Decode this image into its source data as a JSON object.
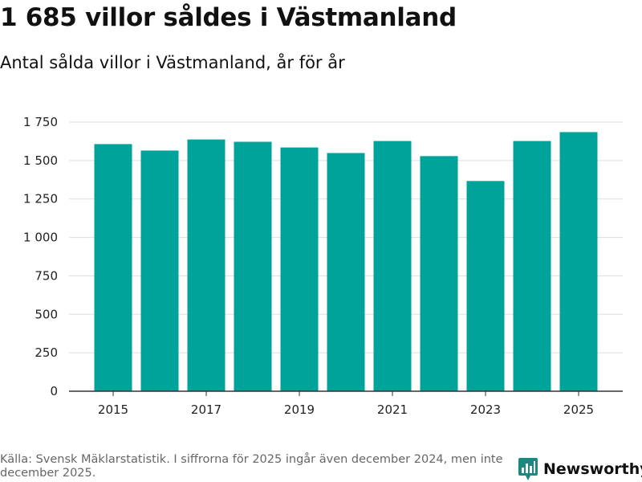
{
  "header": {
    "title": "1 685 villor såldes i Västmanland",
    "subtitle": "Antal sålda villor i Västmanland, år för år"
  },
  "footer": {
    "source": "Källa: Svensk Mäklarstatistik. I siffrorna för 2025 ingår även december 2024, men inte december 2025.",
    "brand": "Newsworthy"
  },
  "colors": {
    "bar": "#00A39A",
    "brand": "#1A8A80",
    "grid": "#DDDDDD",
    "axis": "#333333"
  },
  "chart_data": {
    "type": "bar",
    "title": "1 685 villor såldes i Västmanland",
    "subtitle": "Antal sålda villor i Västmanland, år för år",
    "xlabel": "",
    "ylabel": "",
    "categories": [
      "2015",
      "2016",
      "2017",
      "2018",
      "2019",
      "2020",
      "2021",
      "2022",
      "2023",
      "2024",
      "2025"
    ],
    "values": [
      1607,
      1565,
      1637,
      1622,
      1585,
      1549,
      1627,
      1529,
      1367,
      1627,
      1685
    ],
    "x_tick_labels": [
      "2015",
      "2017",
      "2019",
      "2021",
      "2023",
      "2025"
    ],
    "y_ticks": [
      0,
      250,
      500,
      750,
      1000,
      1250,
      1500,
      1750
    ],
    "y_tick_labels": [
      "0",
      "250",
      "500",
      "750",
      "1 000",
      "1 250",
      "1 500",
      "1 750"
    ],
    "ylim": [
      0,
      1750
    ],
    "grid": true
  }
}
